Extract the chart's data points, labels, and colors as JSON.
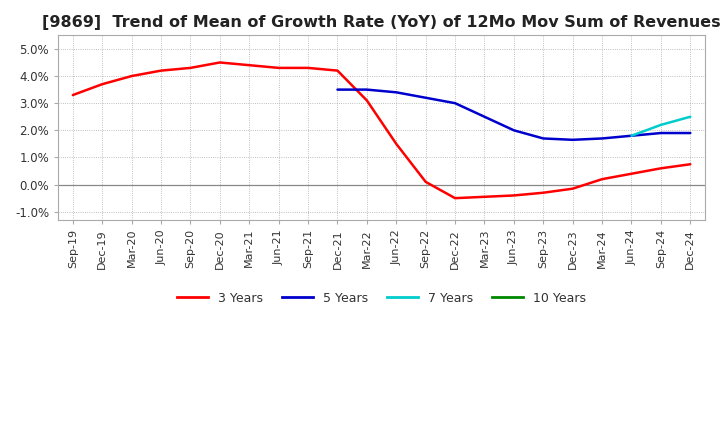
{
  "title": "[9869]  Trend of Mean of Growth Rate (YoY) of 12Mo Mov Sum of Revenues",
  "title_fontsize": 11.5,
  "ylim": [
    -0.013,
    0.055
  ],
  "yticks": [
    -0.01,
    0.0,
    0.01,
    0.02,
    0.03,
    0.04,
    0.05
  ],
  "ytick_labels": [
    "-1.0%",
    "0.0%",
    "1.0%",
    "2.0%",
    "3.0%",
    "4.0%",
    "5.0%"
  ],
  "background_color": "#ffffff",
  "grid_color": "#aaaaaa",
  "line_colors": {
    "3y": "#ff0000",
    "5y": "#0000cc",
    "7y": "#00cccc",
    "10y": "#008800"
  },
  "line_width": 1.8,
  "legend_labels": [
    "3 Years",
    "5 Years",
    "7 Years",
    "10 Years"
  ],
  "x_labels": [
    "Sep-19",
    "Dec-19",
    "Mar-20",
    "Jun-20",
    "Sep-20",
    "Dec-20",
    "Mar-21",
    "Jun-21",
    "Sep-21",
    "Dec-21",
    "Mar-22",
    "Jun-22",
    "Sep-22",
    "Dec-22",
    "Mar-23",
    "Jun-23",
    "Sep-23",
    "Dec-23",
    "Mar-24",
    "Jun-24",
    "Sep-24",
    "Dec-24"
  ],
  "series_3y": [
    0.033,
    0.037,
    0.04,
    0.042,
    0.043,
    0.045,
    0.044,
    0.043,
    0.043,
    0.042,
    0.031,
    0.015,
    0.001,
    -0.005,
    -0.0045,
    -0.004,
    -0.003,
    -0.0015,
    0.002,
    0.004,
    0.006,
    0.0075
  ],
  "series_5y": [
    null,
    null,
    null,
    null,
    null,
    null,
    null,
    null,
    null,
    0.035,
    0.035,
    0.034,
    0.032,
    0.03,
    0.025,
    0.02,
    0.017,
    0.0165,
    0.017,
    0.018,
    0.019,
    0.019
  ],
  "series_7y": [
    null,
    null,
    null,
    null,
    null,
    null,
    null,
    null,
    null,
    null,
    null,
    null,
    null,
    null,
    null,
    null,
    null,
    null,
    null,
    0.018,
    0.022,
    0.025
  ],
  "series_10y": [
    null,
    null,
    null,
    null,
    null,
    null,
    null,
    null,
    null,
    null,
    null,
    null,
    null,
    null,
    null,
    null,
    null,
    null,
    null,
    null,
    null,
    null
  ]
}
